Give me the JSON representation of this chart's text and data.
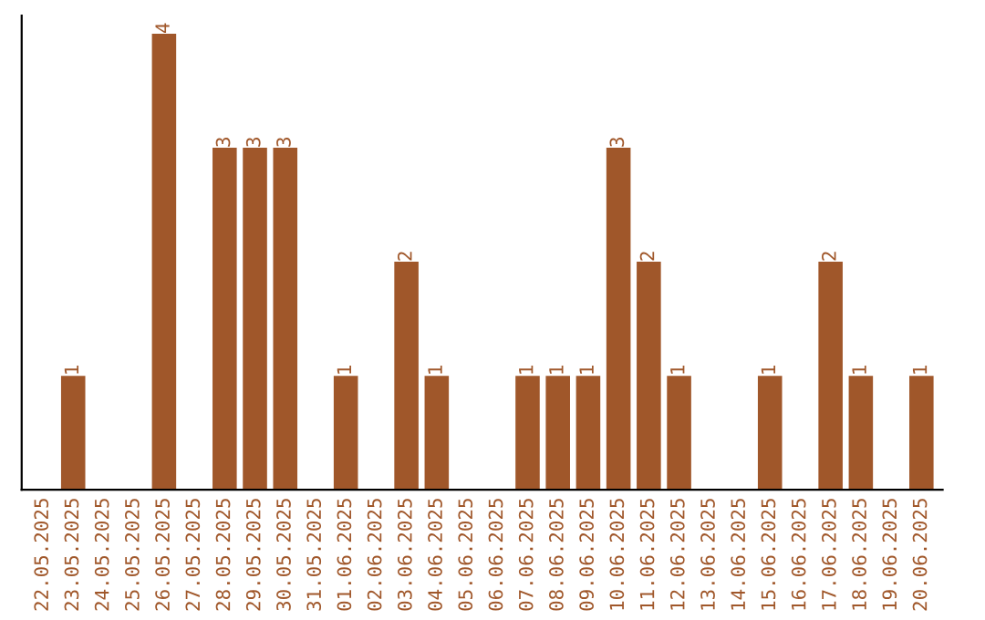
{
  "chart_data": {
    "type": "bar",
    "categories": [
      "22.05.2025",
      "23.05.2025",
      "24.05.2025",
      "25.05.2025",
      "26.05.2025",
      "27.05.2025",
      "28.05.2025",
      "29.05.2025",
      "30.05.2025",
      "31.05.2025",
      "01.06.2025",
      "02.06.2025",
      "03.06.2025",
      "04.06.2025",
      "05.06.2025",
      "06.06.2025",
      "07.06.2025",
      "08.06.2025",
      "09.06.2025",
      "10.06.2025",
      "11.06.2025",
      "12.06.2025",
      "13.06.2025",
      "14.06.2025",
      "15.06.2025",
      "16.06.2025",
      "17.06.2025",
      "18.06.2025",
      "19.06.2025",
      "20.06.2025"
    ],
    "values": [
      0,
      1,
      0,
      0,
      4,
      0,
      3,
      3,
      3,
      0,
      1,
      0,
      2,
      1,
      0,
      0,
      1,
      1,
      1,
      3,
      2,
      1,
      0,
      0,
      1,
      0,
      2,
      1,
      0,
      1
    ],
    "value_labels": [
      null,
      "1",
      null,
      null,
      "4",
      null,
      "3",
      "3",
      "3",
      null,
      "1",
      null,
      "2",
      "1",
      null,
      null,
      "1",
      "1",
      "1",
      "3",
      "2",
      "1",
      null,
      null,
      "1",
      null,
      "2",
      "1",
      null,
      "1"
    ],
    "color": "#a0572a",
    "grid": false
  }
}
